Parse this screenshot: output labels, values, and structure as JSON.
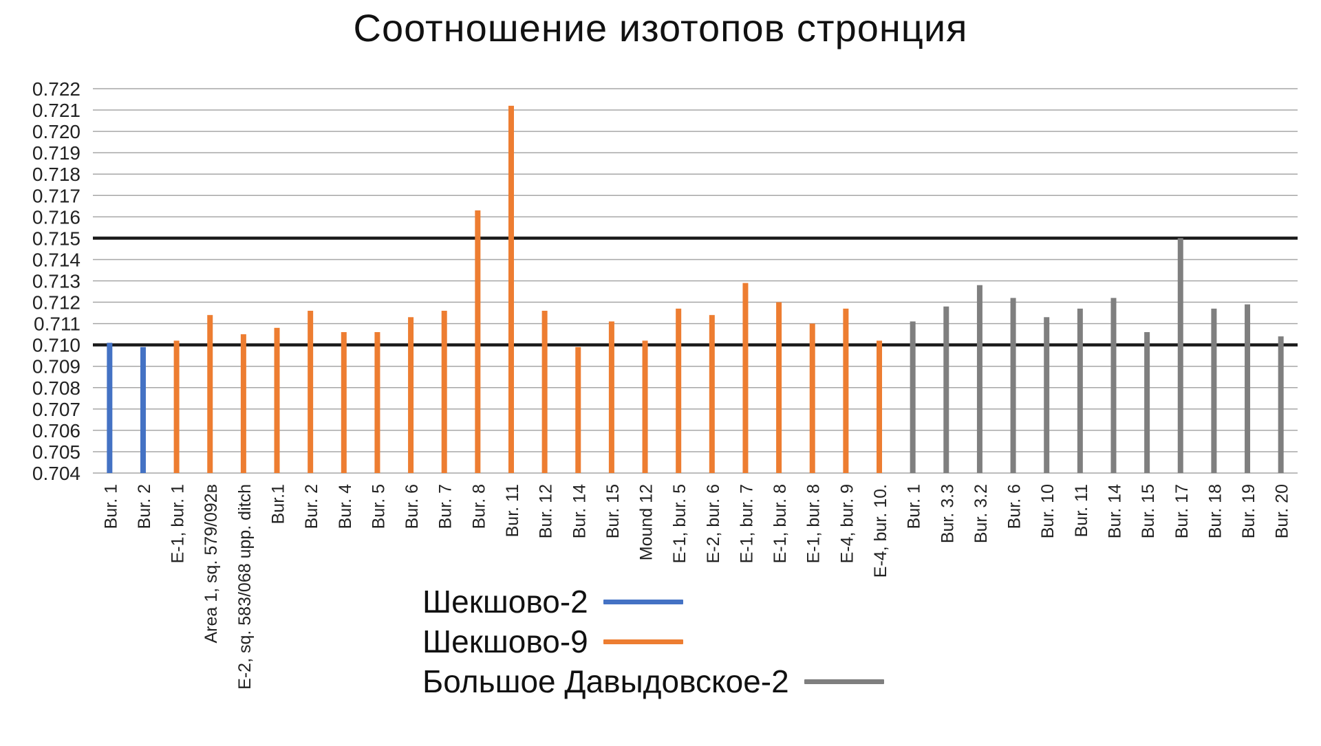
{
  "chart_data": {
    "type": "bar",
    "title": "Соотношение изотопов стронция",
    "xlabel": "",
    "ylabel": "",
    "ylim": [
      0.704,
      0.722
    ],
    "y_ticks": [
      "0.704",
      "0.705",
      "0.706",
      "0.707",
      "0.708",
      "0.709",
      "0.710",
      "0.711",
      "0.712",
      "0.713",
      "0.714",
      "0.715",
      "0.716",
      "0.717",
      "0.718",
      "0.719",
      "0.720",
      "0.721",
      "0.722"
    ],
    "y_tick_values": [
      0.704,
      0.705,
      0.706,
      0.707,
      0.708,
      0.709,
      0.71,
      0.711,
      0.712,
      0.713,
      0.714,
      0.715,
      0.716,
      0.717,
      0.718,
      0.719,
      0.72,
      0.721,
      0.722
    ],
    "grid": true,
    "reference_lines": [
      0.71,
      0.715
    ],
    "legend_position": "bottom-center",
    "series": [
      {
        "name": "Шекшово-2",
        "color": "#4472C4",
        "categories": [
          "Bur. 1",
          "Bur. 2"
        ],
        "values": [
          0.7101,
          0.7099
        ]
      },
      {
        "name": "Шекшово-9",
        "color": "#ED7D31",
        "categories": [
          "E-1, bur. 1",
          "Area 1, sq. 579/092в",
          "E-2, sq. 583/068 upp. ditch",
          "Bur.1",
          "Bur. 2",
          "Bur. 4",
          "Bur. 5",
          "Bur. 6",
          "Bur. 7",
          "Bur. 8",
          "Bur. 11",
          "Bur. 12",
          "Bur. 14",
          "Bur. 15",
          "Mound 12",
          "E-1, bur. 5",
          "E-2, bur. 6",
          "E-1, bur. 7",
          "E-1, bur. 8",
          "E-1, bur. 8",
          "E-4, bur. 9",
          "E-4, bur. 10."
        ],
        "values": [
          0.7102,
          0.7114,
          0.7105,
          0.7108,
          0.7116,
          0.7106,
          0.7106,
          0.7113,
          0.7116,
          0.7163,
          0.7212,
          0.7116,
          0.7099,
          0.7111,
          0.7102,
          0.7117,
          0.7114,
          0.7129,
          0.712,
          0.711,
          0.7117,
          0.7102
        ]
      },
      {
        "name": "Большое Давыдовское-2",
        "color": "#7F7F7F",
        "categories": [
          "Bur. 1",
          "Bur. 3.3",
          "Bur. 3.2",
          "Bur. 6",
          "Bur. 10",
          "Bur. 11",
          "Bur. 14",
          "Bur. 15",
          "Bur. 17",
          "Bur. 18",
          "Bur. 19",
          "Bur. 20"
        ],
        "values": [
          0.7111,
          0.7118,
          0.7128,
          0.7122,
          0.7113,
          0.7117,
          0.7122,
          0.7106,
          0.715,
          0.7117,
          0.7119,
          0.7104
        ]
      }
    ]
  }
}
